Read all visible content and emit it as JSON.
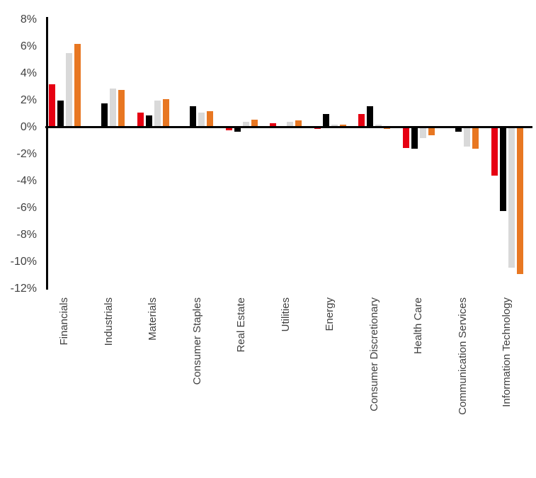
{
  "chart_data": {
    "type": "bar",
    "title": "",
    "categories": [
      "Financials",
      "Industrials",
      "Materials",
      "Consumer Staples",
      "Real Estate",
      "Utilities",
      "Energy",
      "Consumer Discretionary",
      "Health Care",
      "Communication Services",
      "Information Technology"
    ],
    "series": [
      {
        "name": "red-series",
        "color": "#e60012",
        "values": [
          3.2,
          0.0,
          1.1,
          0.0,
          -0.2,
          0.3,
          -0.1,
          1.0,
          -1.5,
          0.1,
          -3.6
        ]
      },
      {
        "name": "black-series",
        "color": "#000000",
        "values": [
          2.0,
          1.8,
          0.9,
          1.6,
          -0.3,
          0.0,
          1.0,
          1.6,
          -1.6,
          -0.3,
          -6.2
        ]
      },
      {
        "name": "gray-series",
        "color": "#d9d9d9",
        "values": [
          5.5,
          2.9,
          2.0,
          1.1,
          0.4,
          0.4,
          0.2,
          0.2,
          -0.8,
          -1.4,
          -10.4
        ]
      },
      {
        "name": "orange-series",
        "color": "#e87722",
        "values": [
          6.2,
          2.8,
          2.1,
          1.2,
          0.6,
          0.5,
          0.2,
          -0.1,
          -0.6,
          -1.6,
          -10.9
        ]
      }
    ],
    "xlabel": "",
    "ylabel": "",
    "y_axis": {
      "unit": "%",
      "min": -12,
      "max": 8,
      "tick_step": 2,
      "tick_labels": [
        "8%",
        "6%",
        "4%",
        "2%",
        "0%",
        "-2%",
        "-4%",
        "-6%",
        "-8%",
        "-10%",
        "-12%"
      ]
    },
    "grid": false,
    "legend": "none",
    "axis_color": "#000000",
    "tick_label_color": "#404040"
  }
}
